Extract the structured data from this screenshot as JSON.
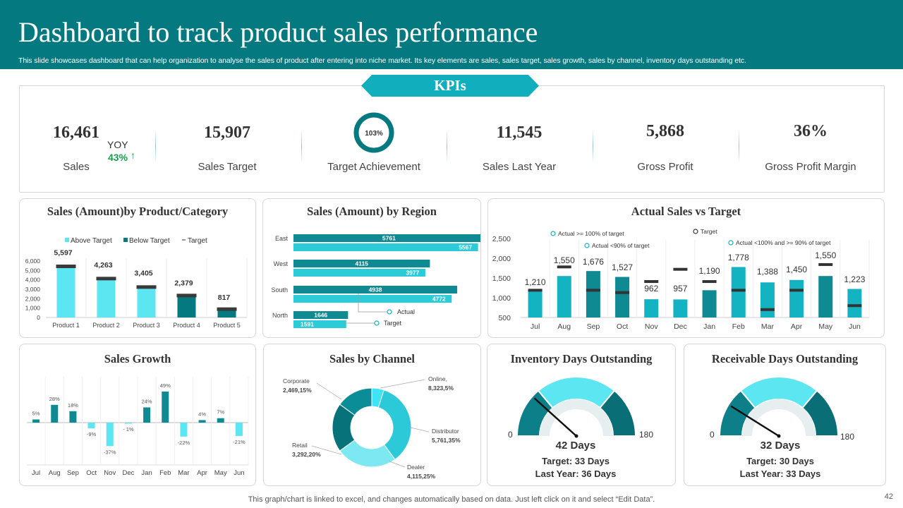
{
  "header": {
    "title": "Dashboard to track product sales performance",
    "subtitle": "This slide showcases dashboard that can help organization to analyse the sales of product after  entering into niche market. Its key  elements are sales, sales target, sales growth, sales by channel, inventory days outstanding etc."
  },
  "kpis": {
    "banner": "KPIs",
    "sales": {
      "value": "16,461",
      "label": "Sales",
      "yoy_label": "YOY",
      "yoy_value": "43%"
    },
    "sales_target": {
      "value": "15,907",
      "label": "Sales Target"
    },
    "target_achievement": {
      "value": "103%",
      "label": "Target Achievement"
    },
    "sales_last_year": {
      "value": "11,545",
      "label": "Sales Last Year"
    },
    "gross_profit": {
      "value": "5,868",
      "label": "Gross Profit"
    },
    "gross_profit_margin": {
      "value": "36%",
      "label": "Gross Profit Margin"
    }
  },
  "panels": {
    "product": "Sales (Amount)by Product/Category",
    "region": "Sales (Amount) by Region",
    "actual_vs_target": "Actual Sales vs Target",
    "growth": "Sales Growth",
    "channel": "Sales by Channel",
    "inventory": "Inventory Days Outstanding",
    "receivable": "Receivable Days Outstanding"
  },
  "gauges": {
    "inventory": {
      "days": "42 Days",
      "target": "Target: 33 Days",
      "last_year": "Last Year: 36 Days",
      "min": "0",
      "max": "180"
    },
    "receivable": {
      "days": "32 Days",
      "target": "Target: 30 Days",
      "last_year": "Last Year: 33 Days",
      "min": "0",
      "max": "180"
    }
  },
  "footer": {
    "note": "This graph/chart is linked to excel,  and changes automatically based on data. Just left click on it and select “Edit Data”.",
    "page": "42"
  },
  "colors": {
    "teal_dark": "#047a80",
    "teal_mid": "#0f8a92",
    "cyan": "#5ce6f2",
    "accent": "#11aebd",
    "green": "#1a9e4a"
  },
  "chart_data": [
    {
      "id": "product",
      "type": "bar",
      "legend": [
        "Above Target",
        "Below Target",
        "Target"
      ],
      "categories": [
        "Product 1",
        "Product 2",
        "Product 3",
        "Product 4",
        "Product 5"
      ],
      "values": [
        5597,
        4263,
        3405,
        2379,
        817
      ],
      "value_labels": [
        "5,597",
        "4,263",
        "3,405",
        "2,379",
        "817"
      ],
      "above_target": [
        true,
        true,
        true,
        false,
        false
      ],
      "targets": [
        5400,
        4100,
        3200,
        2300,
        850
      ],
      "yticks": [
        "0",
        "1,000",
        "2,000",
        "3,000",
        "4,000",
        "5,000",
        "6,000"
      ],
      "ylim": [
        0,
        6000
      ]
    },
    {
      "id": "region",
      "type": "bar",
      "orientation": "horizontal",
      "categories": [
        "East",
        "West",
        "South",
        "North"
      ],
      "actual": [
        5761,
        4115,
        4938,
        1646
      ],
      "target": [
        5567,
        3977,
        4772,
        1591
      ],
      "legend": [
        "Actual",
        "Target"
      ],
      "xlim": [
        0,
        6000
      ]
    },
    {
      "id": "actual_vs_target",
      "type": "bar",
      "categories": [
        "Jul",
        "Aug",
        "Sep",
        "Oct",
        "Nov",
        "Dec",
        "Jan",
        "Feb",
        "Mar",
        "Apr",
        "May",
        "Jun"
      ],
      "values": [
        1210,
        1550,
        1676,
        1527,
        962,
        957,
        1190,
        1778,
        1388,
        1450,
        1550,
        1223
      ],
      "value_labels": [
        "1,210",
        "1,550",
        "1,676",
        "1,527",
        "962",
        "957",
        "1,190",
        "1,778",
        "1,388",
        "1,450",
        "1,550",
        "1,223"
      ],
      "status": [
        "above",
        "above",
        "below",
        "below",
        "above",
        "above",
        "below",
        "above",
        "above",
        "above",
        "below",
        "above"
      ],
      "targets": [
        1190,
        1780,
        1190,
        1130,
        1410,
        1720,
        1410,
        1190,
        700,
        1190,
        1840,
        800
      ],
      "legend": [
        "Actual >= 100% of target",
        "Actual <90% of target",
        "Target",
        "Actual <100% and >= 90% of target"
      ],
      "yticks": [
        "500",
        "1,000",
        "1,500",
        "2,000",
        "2,500"
      ],
      "ylim": [
        500,
        2500
      ]
    },
    {
      "id": "growth",
      "type": "bar",
      "categories": [
        "Jul",
        "Aug",
        "Sep",
        "Oct",
        "Nov",
        "Dec",
        "Jan",
        "Feb",
        "Mar",
        "Apr",
        "May",
        "Jun"
      ],
      "values": [
        5,
        28,
        18,
        -9,
        -37,
        -1,
        24,
        49,
        -22,
        4,
        7,
        -21
      ],
      "value_labels": [
        "5%",
        "28%",
        "18%",
        "-9%",
        "-37%",
        "- 1%",
        "24%",
        "49%",
        "-22%",
        "4%",
        "7%",
        "-21%"
      ]
    },
    {
      "id": "channel",
      "type": "pie",
      "donut": true,
      "labels": [
        "Online",
        "Distributor",
        "Dealer",
        "Retail",
        "Corporate"
      ],
      "values": [
        5,
        35,
        25,
        20,
        15
      ],
      "label_names": [
        "Online,",
        "Distributor",
        "Dealer",
        "Retail",
        "Corporate"
      ],
      "label_values": [
        "8,323,5%",
        "5,761,35%",
        "4,115,25%",
        "3,292,20%",
        "2,469,15%"
      ],
      "colors": [
        "#3ee3f5",
        "#2cc9d9",
        "#7ee8f2",
        "#08727a",
        "#0a8d96"
      ]
    },
    {
      "id": "inventory_gauge",
      "type": "gauge",
      "value": 42,
      "min": 0,
      "max": 180,
      "segments": [
        0,
        50,
        130,
        180
      ]
    },
    {
      "id": "receivable_gauge",
      "type": "gauge",
      "value": 32,
      "min": 0,
      "max": 180,
      "segments": [
        0,
        50,
        130,
        180
      ]
    }
  ]
}
